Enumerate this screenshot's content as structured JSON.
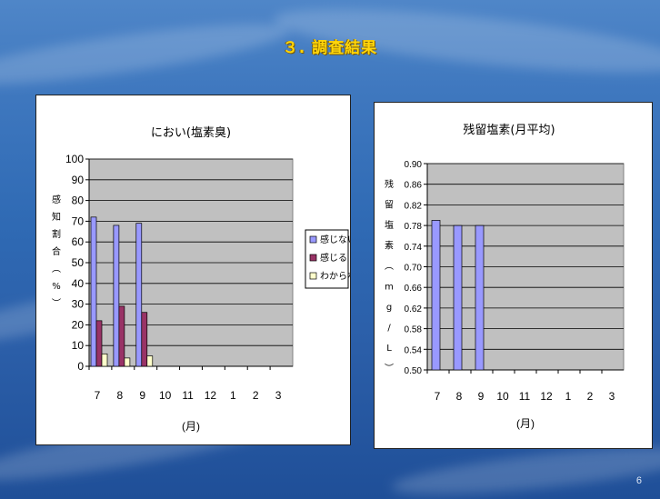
{
  "slide": {
    "title": "３. 調査結果",
    "page_number": "6"
  },
  "chart_data": [
    {
      "type": "bar",
      "title": "におい(塩素臭)",
      "xlabel": "(月)",
      "ylabel": [
        "感",
        "知",
        "割",
        "合",
        "︵",
        "%",
        "︶"
      ],
      "categories": [
        "7",
        "8",
        "9",
        "10",
        "11",
        "12",
        "1",
        "2",
        "3"
      ],
      "ylim": [
        0,
        100
      ],
      "yticks": [
        "0",
        "10",
        "20",
        "30",
        "40",
        "50",
        "60",
        "70",
        "80",
        "90",
        "100"
      ],
      "grid": true,
      "legend_position": "right",
      "series": [
        {
          "name": "感じない",
          "color": "#9999ff",
          "values": [
            72,
            68,
            69,
            null,
            null,
            null,
            null,
            null,
            null
          ]
        },
        {
          "name": "感じる",
          "color": "#993366",
          "values": [
            22,
            29,
            26,
            null,
            null,
            null,
            null,
            null,
            null
          ]
        },
        {
          "name": "わからない",
          "color": "#ffffcc",
          "values": [
            6,
            4,
            5,
            null,
            null,
            null,
            null,
            null,
            null
          ]
        }
      ]
    },
    {
      "type": "bar",
      "title": "残留塩素(月平均)",
      "xlabel": "(月)",
      "ylabel": [
        "残",
        "留",
        "塩",
        "素",
        "︵",
        "m",
        "g",
        "/",
        "L",
        "︶"
      ],
      "categories": [
        "7",
        "8",
        "9",
        "10",
        "11",
        "12",
        "1",
        "2",
        "3"
      ],
      "ylim": [
        0.5,
        0.9
      ],
      "yticks": [
        "0.50",
        "0.54",
        "0.58",
        "0.62",
        "0.66",
        "0.70",
        "0.74",
        "0.78",
        "0.82",
        "0.86",
        "0.90"
      ],
      "grid": true,
      "series": [
        {
          "color": "#9999ff",
          "values": [
            0.79,
            0.78,
            0.78,
            null,
            null,
            null,
            null,
            null,
            null
          ]
        }
      ]
    }
  ]
}
